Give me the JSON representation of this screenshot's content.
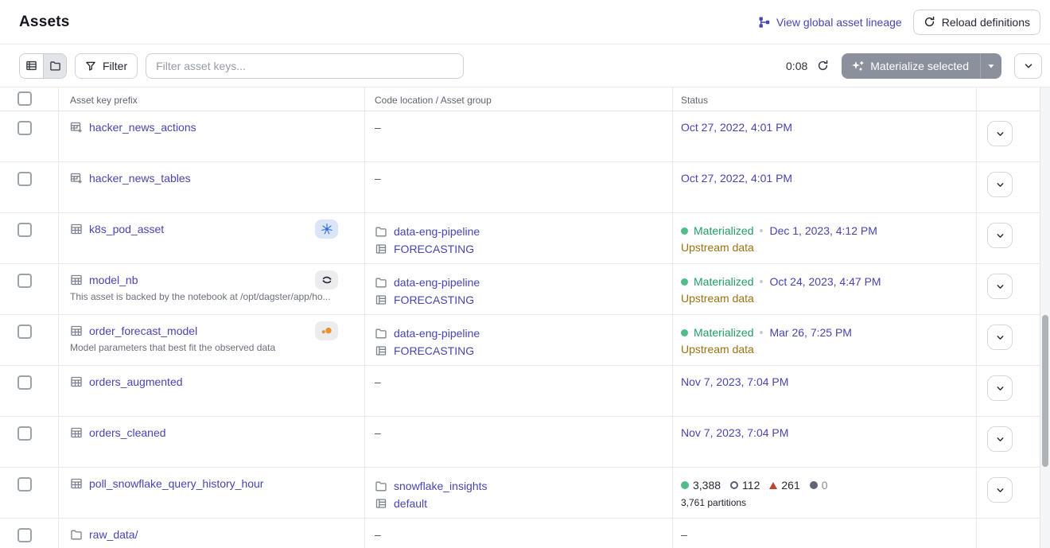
{
  "header": {
    "title": "Assets",
    "lineage_link": "View global asset lineage",
    "reload_button": "Reload definitions"
  },
  "toolbar": {
    "filter_button": "Filter",
    "search_placeholder": "Filter asset keys...",
    "timer": "0:08",
    "materialize_button": "Materialize selected"
  },
  "table": {
    "columns": [
      "Asset key prefix",
      "Code location / Asset group",
      "Status"
    ],
    "empty_value": "–",
    "rows": [
      {
        "name": "hacker_news_actions",
        "icon": "table-add",
        "badge": null,
        "description": null,
        "location": null,
        "status": {
          "type": "timestamp",
          "timestamp": "Oct 27, 2022, 4:01 PM"
        },
        "expand_button": true
      },
      {
        "name": "hacker_news_tables",
        "icon": "table-add",
        "badge": null,
        "description": null,
        "location": null,
        "status": {
          "type": "timestamp",
          "timestamp": "Oct 27, 2022, 4:01 PM"
        },
        "expand_button": true
      },
      {
        "name": "k8s_pod_asset",
        "icon": "table",
        "badge": "kubernetes",
        "description": null,
        "location": {
          "code_location": "data-eng-pipeline",
          "group": "FORECASTING"
        },
        "status": {
          "type": "materialized",
          "label": "Materialized",
          "timestamp": "Dec 1, 2023, 4:12 PM",
          "note": "Upstream data"
        },
        "expand_button": true
      },
      {
        "name": "model_nb",
        "icon": "table",
        "badge": "noteable",
        "description": "This asset is backed by the notebook at /opt/dagster/app/ho...",
        "location": {
          "code_location": "data-eng-pipeline",
          "group": "FORECASTING"
        },
        "status": {
          "type": "materialized",
          "label": "Materialized",
          "timestamp": "Oct 24, 2023, 4:47 PM",
          "note": "Upstream data"
        },
        "expand_button": true
      },
      {
        "name": "order_forecast_model",
        "icon": "table",
        "badge": "orange-dots",
        "description": "Model parameters that best fit the observed data",
        "location": {
          "code_location": "data-eng-pipeline",
          "group": "FORECASTING"
        },
        "status": {
          "type": "materialized",
          "label": "Materialized",
          "timestamp": "Mar 26, 7:25 PM",
          "note": "Upstream data"
        },
        "expand_button": true
      },
      {
        "name": "orders_augmented",
        "icon": "table",
        "badge": null,
        "description": null,
        "location": null,
        "status": {
          "type": "timestamp",
          "timestamp": "Nov 7, 2023, 7:04 PM"
        },
        "expand_button": true
      },
      {
        "name": "orders_cleaned",
        "icon": "table",
        "badge": null,
        "description": null,
        "location": null,
        "status": {
          "type": "timestamp",
          "timestamp": "Nov 7, 2023, 7:04 PM"
        },
        "expand_button": true
      },
      {
        "name": "poll_snowflake_query_history_hour",
        "icon": "table",
        "badge": null,
        "description": null,
        "location": {
          "code_location": "snowflake_insights",
          "group": "default"
        },
        "status": {
          "type": "counts",
          "counts": [
            {
              "kind": "materialized-dot",
              "value": "3,388"
            },
            {
              "kind": "observed-circle",
              "value": "112"
            },
            {
              "kind": "failed-triangle",
              "value": "261"
            },
            {
              "kind": "missing-dot",
              "value": "0",
              "muted": true
            }
          ],
          "note": "3,761 partitions"
        },
        "expand_button": true
      },
      {
        "name": "raw_data/",
        "icon": "folder",
        "badge": null,
        "description": null,
        "location": null,
        "status": {
          "type": "dash"
        },
        "expand_button": false
      }
    ]
  },
  "colors": {
    "link": "#4745B4",
    "materialized_green": "#1F9D67",
    "materialized_green_dot": "#4FBE8B",
    "upstream_note": "#9C7110",
    "failed_red": "#BF4232",
    "missing_gray": "#5E6575",
    "kubernetes_blue": "#3A72DF",
    "badge_orange": "#E8912D",
    "materialize_button_bg": "#8A909C"
  }
}
